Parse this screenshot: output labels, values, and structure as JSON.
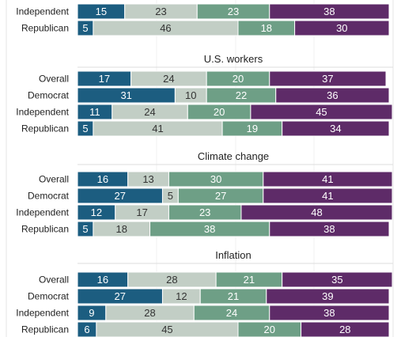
{
  "chart_data": {
    "type": "bar",
    "stacked": true,
    "orientation": "horizontal",
    "xlim": [
      0,
      100
    ],
    "colors": [
      "#1c5d80",
      "#c2cec5",
      "#6e9f86",
      "#5e2b68"
    ],
    "gridlines": true,
    "panels": [
      {
        "title": "",
        "categories": [
          "Independent",
          "Republican"
        ],
        "series": [
          {
            "values": [
              15,
              5
            ]
          },
          {
            "values": [
              23,
              46
            ]
          },
          {
            "values": [
              23,
              18
            ]
          },
          {
            "values": [
              38,
              30
            ]
          }
        ]
      },
      {
        "title": "U.S. workers",
        "categories": [
          "Overall",
          "Democrat",
          "Independent",
          "Republican"
        ],
        "series": [
          {
            "values": [
              17,
              31,
              11,
              5
            ]
          },
          {
            "values": [
              24,
              10,
              24,
              41
            ]
          },
          {
            "values": [
              20,
              22,
              20,
              19
            ]
          },
          {
            "values": [
              37,
              36,
              45,
              34
            ]
          }
        ]
      },
      {
        "title": "Climate change",
        "categories": [
          "Overall",
          "Democrat",
          "Independent",
          "Republican"
        ],
        "series": [
          {
            "values": [
              16,
              27,
              12,
              5
            ]
          },
          {
            "values": [
              13,
              5,
              17,
              18
            ]
          },
          {
            "values": [
              30,
              27,
              23,
              38
            ]
          },
          {
            "values": [
              41,
              41,
              48,
              38
            ]
          }
        ]
      },
      {
        "title": "Inflation",
        "categories": [
          "Overall",
          "Democrat",
          "Independent",
          "Republican"
        ],
        "series": [
          {
            "values": [
              16,
              27,
              9,
              6
            ]
          },
          {
            "values": [
              28,
              12,
              28,
              45
            ]
          },
          {
            "values": [
              21,
              21,
              24,
              20
            ]
          },
          {
            "values": [
              35,
              39,
              38,
              28
            ]
          }
        ]
      }
    ]
  }
}
